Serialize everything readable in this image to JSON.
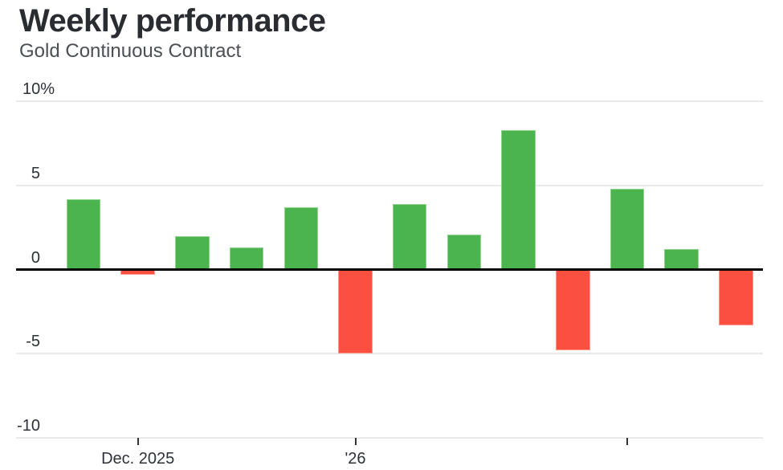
{
  "header": {
    "title": "Weekly performance",
    "subtitle": "Gold Continuous Contract"
  },
  "chart_data": {
    "type": "bar",
    "title": "Weekly performance",
    "subtitle": "Gold Continuous Contract",
    "unit": "%",
    "values": [
      4.2,
      -0.3,
      2.0,
      1.3,
      3.7,
      -5.0,
      3.9,
      2.1,
      8.3,
      -4.8,
      4.8,
      1.2,
      -3.3
    ],
    "y_ticks": [
      {
        "value": 10,
        "label": "10%"
      },
      {
        "value": 5,
        "label": "5"
      },
      {
        "value": 0,
        "label": "0"
      },
      {
        "value": -5,
        "label": "-5"
      },
      {
        "value": -10,
        "label": "-10"
      }
    ],
    "x_ticks": [
      {
        "index": 1,
        "label": "Dec. 2025"
      },
      {
        "index": 5,
        "label": "'26"
      },
      {
        "index": 10,
        "label": ""
      }
    ],
    "ylim": [
      -10,
      10
    ],
    "grid": true,
    "legend": "none",
    "colors": {
      "positive": "#4bb44e",
      "positive_border": "#8fd38c",
      "negative": "#fb4f42",
      "negative_border": "#ff9d8f",
      "gridline": "#eaeaea",
      "zero_line": "#000000",
      "axis_text": "#2d3037",
      "title_text": "#2b2c31",
      "subtitle_text": "#4c4f55"
    }
  }
}
